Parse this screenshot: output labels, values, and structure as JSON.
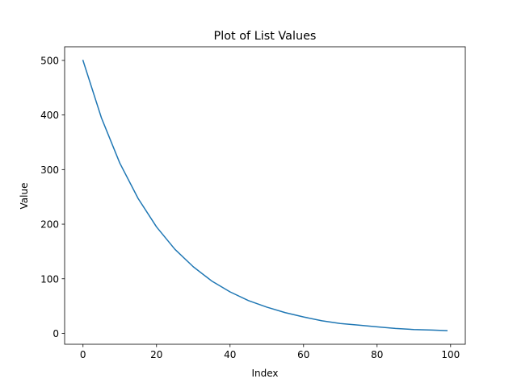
{
  "chart_data": {
    "type": "line",
    "title": "Plot of List Values",
    "xlabel": "Index",
    "ylabel": "Value",
    "xlim": [
      -5,
      104
    ],
    "ylim": [
      -20,
      525
    ],
    "xticks": [
      0,
      20,
      40,
      60,
      80,
      100
    ],
    "yticks": [
      0,
      100,
      200,
      300,
      400,
      500
    ],
    "grid": false,
    "series": [
      {
        "color": "#1f77b4",
        "x": [
          0,
          5,
          10,
          15,
          20,
          25,
          30,
          35,
          40,
          45,
          50,
          55,
          60,
          65,
          70,
          75,
          80,
          85,
          90,
          95,
          99
        ],
        "y": [
          500,
          395,
          312,
          247,
          195,
          154,
          122,
          96,
          76,
          60,
          48,
          38,
          30,
          23,
          18,
          15,
          12,
          9,
          7,
          6,
          5
        ]
      }
    ]
  }
}
